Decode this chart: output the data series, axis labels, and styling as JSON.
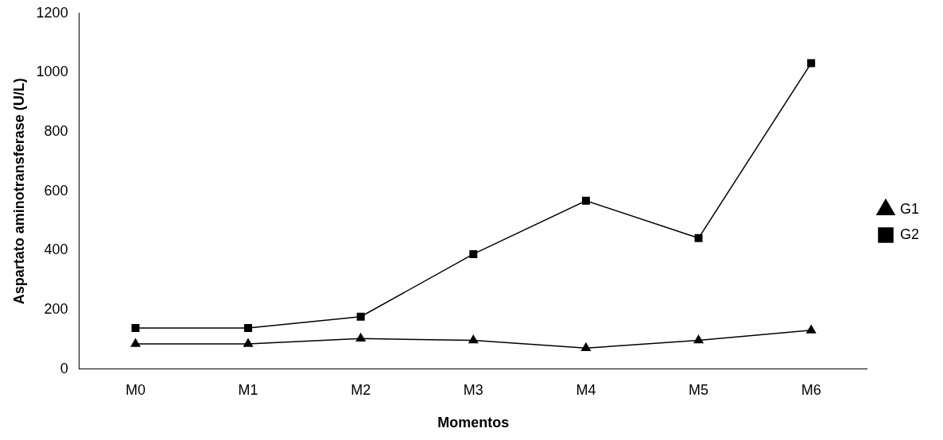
{
  "chart_data": {
    "type": "line",
    "xlabel": "Momentos",
    "ylabel": "Aspartato aminotransferase (U/L)",
    "categories": [
      "M0",
      "M1",
      "M2",
      "M3",
      "M4",
      "M5",
      "M6"
    ],
    "series": [
      {
        "name": "G1",
        "color": "#000000",
        "marker": "triangle",
        "values": [
          85,
          85,
          103,
          97,
          71,
          97,
          131
        ]
      },
      {
        "name": "G2",
        "color": "#000000",
        "marker": "square",
        "values": [
          139,
          139,
          177,
          388,
          568,
          442,
          1032
        ]
      }
    ],
    "ylim": [
      0,
      1200
    ],
    "yticks": [
      0,
      200,
      400,
      600,
      800,
      1000,
      1200
    ],
    "grid": false,
    "legend": "right",
    "line_style": "solid"
  }
}
